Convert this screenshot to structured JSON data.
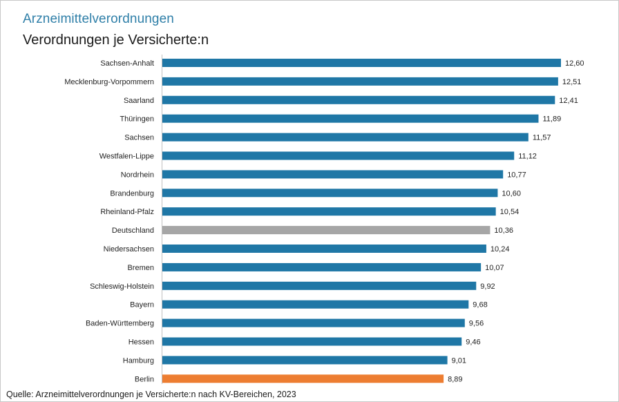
{
  "header": {
    "title": "Arzneimittelverordnungen",
    "subtitle": "Verordnungen je Versicherte:n"
  },
  "footer": {
    "source": "Quelle: Arzneimittelverordnungen je Versicherte:n nach KV-Bereichen, 2023"
  },
  "colors": {
    "default": "#1f77a6",
    "national": "#a6a6a6",
    "highlight": "#ed7d31"
  },
  "chart_data": {
    "type": "bar",
    "orientation": "horizontal",
    "title": "Arzneimittelverordnungen",
    "subtitle": "Verordnungen je Versicherte:n",
    "xlabel": "",
    "ylabel": "",
    "xlim": [
      0,
      12.6
    ],
    "grid": false,
    "categories": [
      "Sachsen-Anhalt",
      "Mecklenburg-Vorpommern",
      "Saarland",
      "Thüringen",
      "Sachsen",
      "Westfalen-Lippe",
      "Nordrhein",
      "Brandenburg",
      "Rheinland-Pfalz",
      "Deutschland",
      "Niedersachsen",
      "Bremen",
      "Schleswig-Holstein",
      "Bayern",
      "Baden-Württemberg",
      "Hessen",
      "Hamburg",
      "Berlin"
    ],
    "values": [
      12.6,
      12.51,
      12.41,
      11.89,
      11.57,
      11.12,
      10.77,
      10.6,
      10.54,
      10.36,
      10.24,
      10.07,
      9.92,
      9.68,
      9.56,
      9.46,
      9.01,
      8.89
    ],
    "value_labels": [
      "12,60",
      "12,51",
      "12,41",
      "11,89",
      "11,57",
      "11,12",
      "10,77",
      "10,60",
      "10,54",
      "10,36",
      "10,24",
      "10,07",
      "9,92",
      "9,68",
      "9,56",
      "9,46",
      "9,01",
      "8,89"
    ],
    "bar_color_keys": [
      "default",
      "default",
      "default",
      "default",
      "default",
      "default",
      "default",
      "default",
      "default",
      "national",
      "default",
      "default",
      "default",
      "default",
      "default",
      "default",
      "default",
      "highlight"
    ]
  }
}
